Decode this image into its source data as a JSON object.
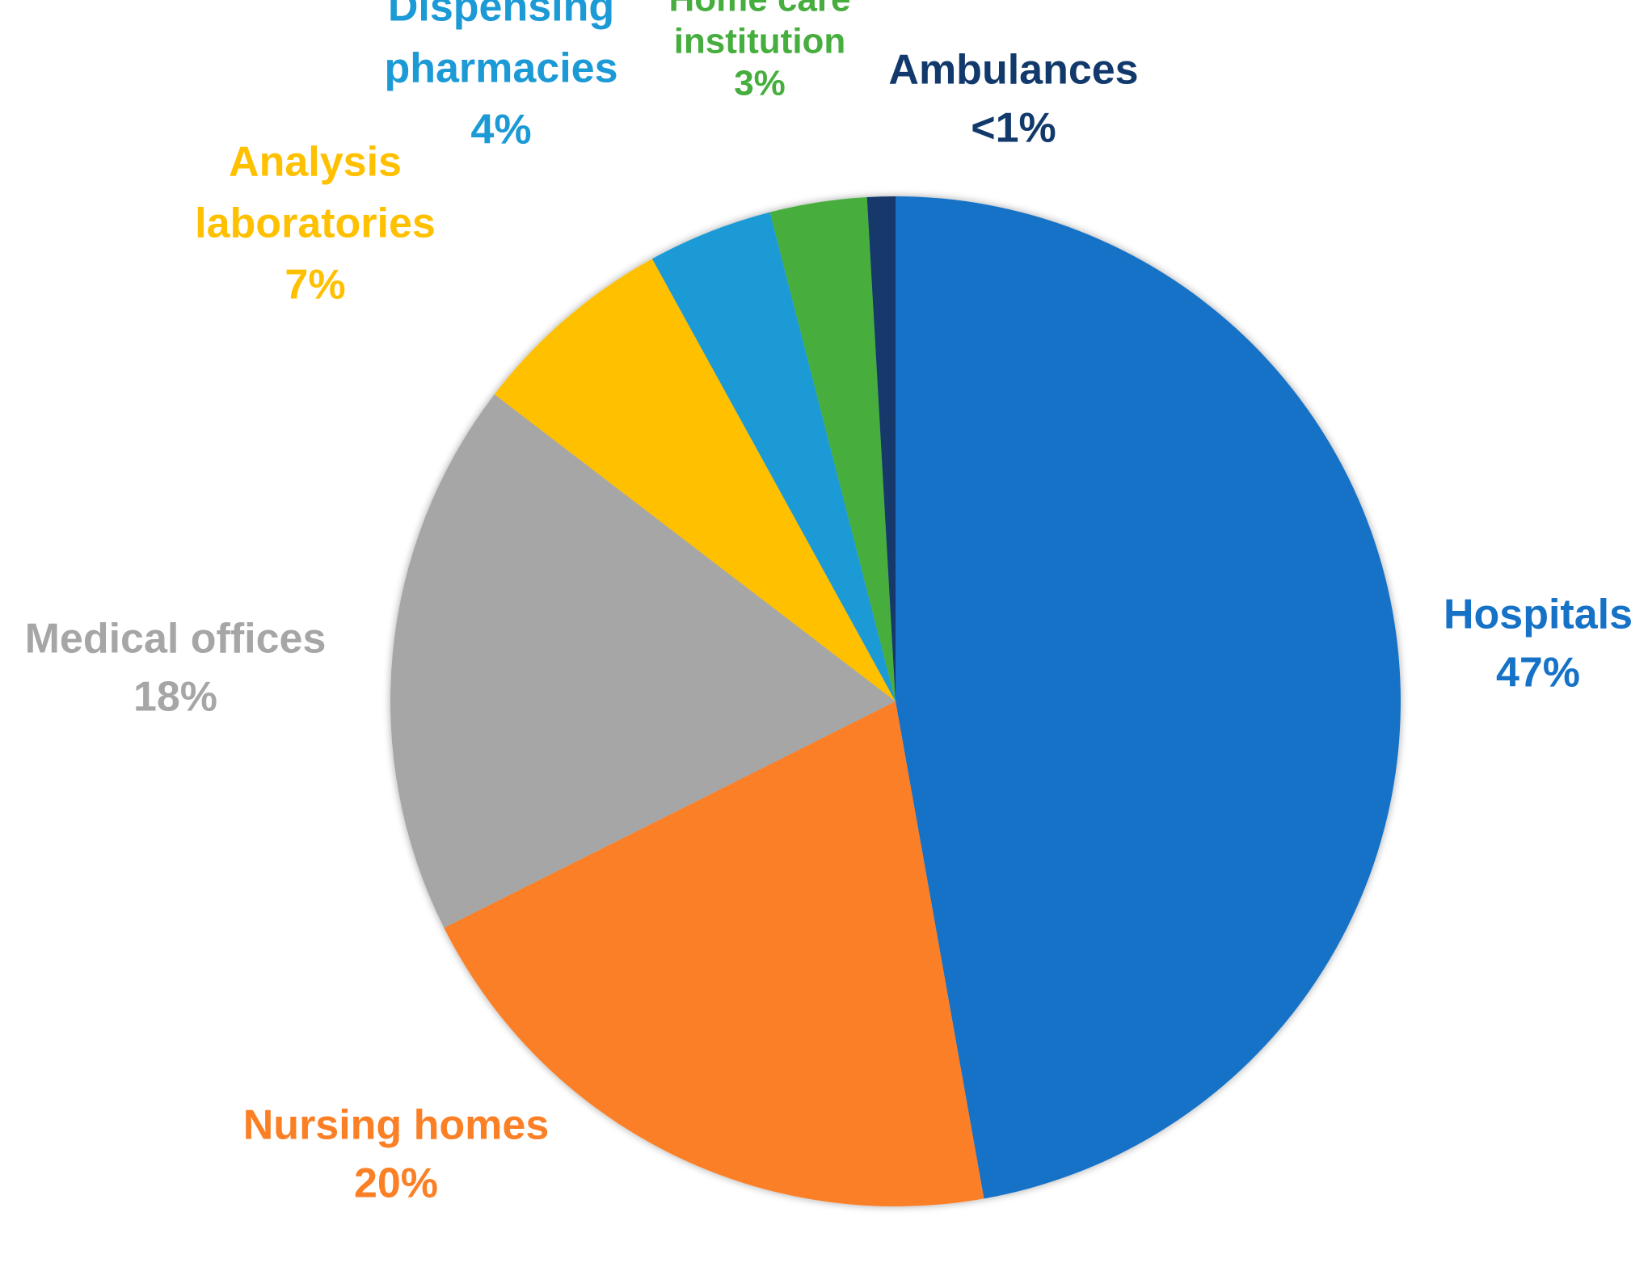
{
  "chart_data": {
    "type": "pie",
    "title": "",
    "start": "top",
    "direction": "clockwise",
    "legend": "none",
    "slices": [
      {
        "label": [
          "Hospitals"
        ],
        "value_label": "47%",
        "value": 47.2,
        "color": "#1572C7"
      },
      {
        "label": [
          "Nursing homes"
        ],
        "value_label": "20%",
        "value": 20.4,
        "color": "#FB7F25"
      },
      {
        "label": [
          "Medical offices"
        ],
        "value_label": "18%",
        "value": 17.8,
        "color": "#A6A6A6"
      },
      {
        "label": [
          "Analysis",
          "laboratories"
        ],
        "value_label": "7%",
        "value": 6.6,
        "color": "#FFC000"
      },
      {
        "label": [
          "Dispensing",
          "pharmacies"
        ],
        "value_label": "4%",
        "value": 4.0,
        "color": "#1B9AD6"
      },
      {
        "label": [
          "Home care",
          "institution"
        ],
        "value_label": "3%",
        "value": 3.1,
        "color": "#46AE3E"
      },
      {
        "label": [
          "Ambulances"
        ],
        "value_label": "<1%",
        "value": 0.9,
        "color": "#12396B"
      }
    ]
  }
}
